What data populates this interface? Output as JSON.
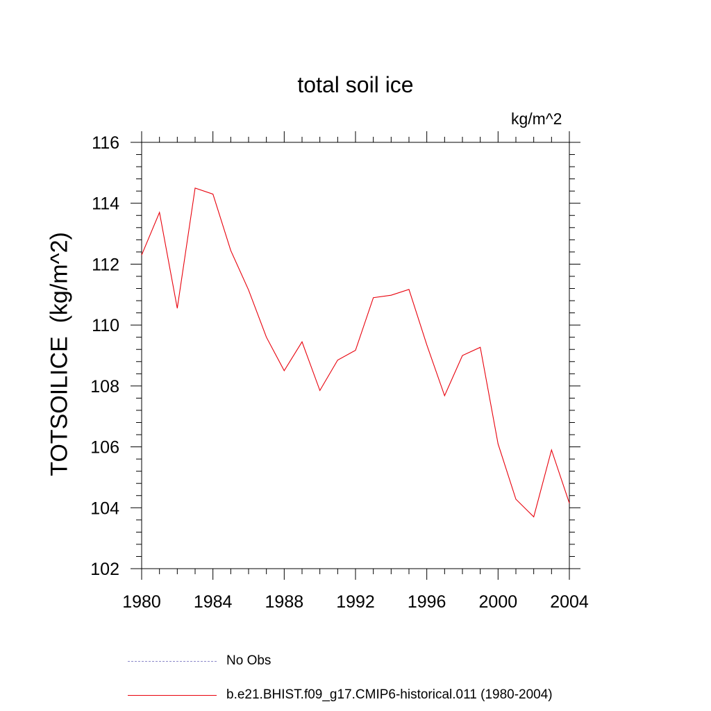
{
  "chart_data": {
    "type": "line",
    "title": "total soil ice",
    "units_label": "kg/m^2",
    "ylabel": "TOTSOILICE  (kg/m^2)",
    "xlim": [
      1980,
      2004
    ],
    "ylim": [
      102,
      116
    ],
    "xticks": [
      1980,
      1984,
      1988,
      1992,
      1996,
      2000,
      2004
    ],
    "yticks": [
      102,
      104,
      106,
      108,
      110,
      112,
      114,
      116
    ],
    "grid": false,
    "legend_position": "bottom",
    "series": [
      {
        "name": "b.e21.BHIST.f09_g17.CMIP6-historical.011 (1980-2004)",
        "color": "#e8000b",
        "x": [
          1980,
          1981,
          1982,
          1983,
          1984,
          1985,
          1986,
          1987,
          1988,
          1989,
          1990,
          1991,
          1992,
          1993,
          1994,
          1995,
          1996,
          1997,
          1998,
          1999,
          2000,
          2001,
          2002,
          2003,
          2004
        ],
        "y": [
          112.3,
          113.7,
          110.55,
          114.5,
          114.3,
          112.45,
          111.15,
          109.6,
          108.5,
          109.45,
          107.85,
          108.85,
          109.17,
          110.9,
          110.98,
          111.17,
          109.35,
          107.68,
          109.0,
          109.27,
          106.1,
          104.28,
          103.7,
          105.9,
          104.15
        ]
      }
    ]
  },
  "legend": [
    {
      "label": "No Obs",
      "style": "dashed",
      "color": "#8a88c8"
    },
    {
      "label": "b.e21.BHIST.f09_g17.CMIP6-historical.011 (1980-2004)",
      "style": "solid",
      "color": "#e8000b"
    }
  ]
}
